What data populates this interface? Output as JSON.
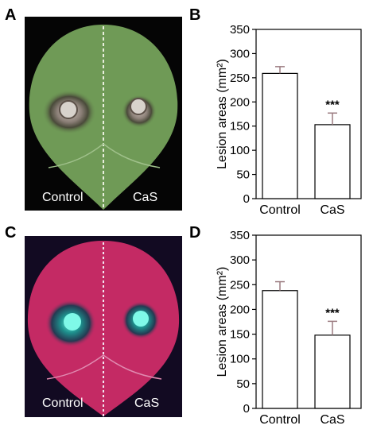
{
  "figure": {
    "panel_labels": [
      "A",
      "B",
      "C",
      "D"
    ]
  },
  "photos": [
    {
      "panel": "A",
      "left_label": "Control",
      "right_label": "CaS"
    },
    {
      "panel": "C",
      "left_label": "Control",
      "right_label": "CaS"
    }
  ],
  "colors": {
    "leaf_green": "#6f9a56",
    "leaf_bg_black": "#050505",
    "uv_leaf_magenta": "#c42a64",
    "uv_bg_dark": "#120a22",
    "lesion_cyan": "#59f0d6",
    "error_bar": "#9b7b80"
  },
  "chart_data": [
    {
      "panel": "B",
      "type": "bar",
      "categories": [
        "Control",
        "CaS"
      ],
      "values": [
        259,
        153
      ],
      "errors": [
        14,
        24
      ],
      "annotations": [
        "",
        "***"
      ],
      "ylabel": "Lesion areas (mm²)",
      "ylim": [
        0,
        350
      ],
      "yticks": [
        0,
        50,
        100,
        150,
        200,
        250,
        300,
        350
      ],
      "grid": false
    },
    {
      "panel": "D",
      "type": "bar",
      "categories": [
        "Control",
        "CaS"
      ],
      "values": [
        238,
        148
      ],
      "errors": [
        18,
        28
      ],
      "annotations": [
        "",
        "***"
      ],
      "ylabel": "Lesion areas (mm²)",
      "ylim": [
        0,
        350
      ],
      "yticks": [
        0,
        50,
        100,
        150,
        200,
        250,
        300,
        350
      ],
      "grid": false
    }
  ]
}
